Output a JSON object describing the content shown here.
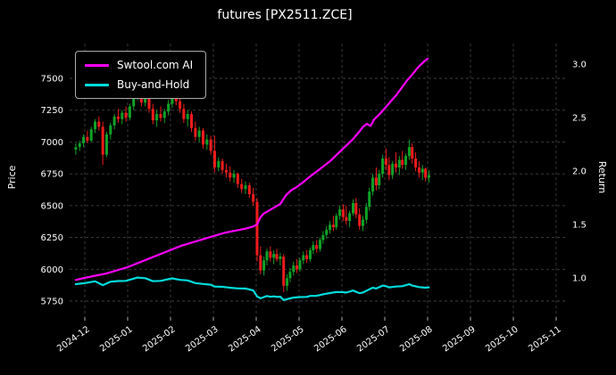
{
  "chart_data": {
    "type": "candlestick+line",
    "title": "futures [PX2511.ZCE]",
    "ylabel_left": "Price",
    "ylabel_right": "Return",
    "x_unit": "months (0 = 2024-12)",
    "xlim": [
      -0.354,
      11.208
    ],
    "price_ylim": [
      5624,
      7773
    ],
    "return_ylim": [
      0.633,
      3.19
    ],
    "background": "#000000",
    "text_color": "#ffffff",
    "grid": {
      "on": true,
      "color": "#3f3f3f",
      "dash": "3,3"
    },
    "legend_position": "upper-left",
    "x_ticks": [
      {
        "value": 0,
        "label": "2024-12"
      },
      {
        "value": 1,
        "label": "2025-01"
      },
      {
        "value": 2,
        "label": "2025-02"
      },
      {
        "value": 3,
        "label": "2025-03"
      },
      {
        "value": 4,
        "label": "2025-04"
      },
      {
        "value": 5,
        "label": "2025-05"
      },
      {
        "value": 6,
        "label": "2025-06"
      },
      {
        "value": 7,
        "label": "2025-07"
      },
      {
        "value": 8,
        "label": "2025-08"
      },
      {
        "value": 9,
        "label": "2025-09"
      },
      {
        "value": 10,
        "label": "2025-10"
      },
      {
        "value": 11,
        "label": "2025-11"
      }
    ],
    "price_ticks": [
      {
        "value": 5750,
        "label": "5750"
      },
      {
        "value": 6000,
        "label": "6000"
      },
      {
        "value": 6250,
        "label": "6250"
      },
      {
        "value": 6500,
        "label": "6500"
      },
      {
        "value": 6750,
        "label": "6750"
      },
      {
        "value": 7000,
        "label": "7000"
      },
      {
        "value": 7250,
        "label": "7250"
      },
      {
        "value": 7500,
        "label": "7500"
      }
    ],
    "return_ticks": [
      {
        "value": 1.0,
        "label": "1.0"
      },
      {
        "value": 1.5,
        "label": "1.5"
      },
      {
        "value": 2.0,
        "label": "2.0"
      },
      {
        "value": 2.5,
        "label": "2.5"
      },
      {
        "value": 3.0,
        "label": "3.0"
      }
    ],
    "legend": [
      {
        "label": "Swtool.com AI",
        "color": "#ff00ff"
      },
      {
        "label": "Buy-and-Hold",
        "color": "#00dcdc"
      }
    ],
    "candles": {
      "up_color": "#0fa227",
      "down_color": "#ee1c1c",
      "ohlc": [
        [
          -0.21,
          6940,
          6990,
          6900,
          6960
        ],
        [
          -0.12,
          6960,
          7010,
          6930,
          6990
        ],
        [
          -0.03,
          6990,
          7060,
          6960,
          7040
        ],
        [
          0.06,
          7040,
          7090,
          6990,
          7010
        ],
        [
          0.15,
          7010,
          7120,
          7000,
          7100
        ],
        [
          0.24,
          7100,
          7180,
          7070,
          7160
        ],
        [
          0.33,
          7160,
          7200,
          7090,
          7120
        ],
        [
          0.42,
          7120,
          7160,
          6820,
          6900
        ],
        [
          0.51,
          6900,
          7080,
          6880,
          7060
        ],
        [
          0.6,
          7060,
          7150,
          7020,
          7130
        ],
        [
          0.69,
          7130,
          7220,
          7100,
          7200
        ],
        [
          0.78,
          7200,
          7260,
          7150,
          7180
        ],
        [
          0.87,
          7180,
          7250,
          7140,
          7230
        ],
        [
          0.96,
          7230,
          7280,
          7160,
          7190
        ],
        [
          1.05,
          7190,
          7300,
          7170,
          7280
        ],
        [
          1.14,
          7280,
          7380,
          7250,
          7350
        ],
        [
          1.23,
          7350,
          7460,
          7330,
          7420
        ],
        [
          1.32,
          7420,
          7440,
          7280,
          7310
        ],
        [
          1.41,
          7310,
          7400,
          7280,
          7380
        ],
        [
          1.5,
          7380,
          7400,
          7230,
          7260
        ],
        [
          1.59,
          7260,
          7300,
          7140,
          7170
        ],
        [
          1.68,
          7170,
          7250,
          7120,
          7220
        ],
        [
          1.77,
          7220,
          7280,
          7160,
          7190
        ],
        [
          1.86,
          7190,
          7260,
          7150,
          7240
        ],
        [
          1.95,
          7240,
          7330,
          7210,
          7300
        ],
        [
          2.04,
          7300,
          7400,
          7270,
          7360
        ],
        [
          2.13,
          7360,
          7410,
          7290,
          7320
        ],
        [
          2.22,
          7320,
          7360,
          7230,
          7260
        ],
        [
          2.31,
          7260,
          7300,
          7150,
          7180
        ],
        [
          2.4,
          7180,
          7250,
          7120,
          7220
        ],
        [
          2.49,
          7220,
          7240,
          7080,
          7110
        ],
        [
          2.58,
          7110,
          7160,
          7010,
          7040
        ],
        [
          2.67,
          7040,
          7120,
          7000,
          7090
        ],
        [
          2.76,
          7090,
          7110,
          6950,
          6980
        ],
        [
          2.85,
          6980,
          7060,
          6940,
          7020
        ],
        [
          2.94,
          7020,
          7050,
          6900,
          6930
        ],
        [
          3.03,
          6930,
          7050,
          6760,
          6800
        ],
        [
          3.12,
          6800,
          6880,
          6770,
          6850
        ],
        [
          3.21,
          6850,
          6870,
          6750,
          6780
        ],
        [
          3.3,
          6780,
          6830,
          6720,
          6760
        ],
        [
          3.39,
          6760,
          6810,
          6690,
          6720
        ],
        [
          3.48,
          6720,
          6780,
          6680,
          6750
        ],
        [
          3.57,
          6750,
          6760,
          6640,
          6670
        ],
        [
          3.66,
          6670,
          6710,
          6600,
          6630
        ],
        [
          3.75,
          6630,
          6690,
          6590,
          6660
        ],
        [
          3.84,
          6660,
          6680,
          6560,
          6590
        ],
        [
          3.93,
          6590,
          6640,
          6500,
          6530
        ],
        [
          4.02,
          6530,
          6560,
          6060,
          6110
        ],
        [
          4.1,
          6110,
          6180,
          5960,
          5990
        ],
        [
          4.18,
          5990,
          6100,
          5950,
          6070
        ],
        [
          4.25,
          6070,
          6160,
          6030,
          6140
        ],
        [
          4.33,
          6140,
          6180,
          6060,
          6090
        ],
        [
          4.41,
          6090,
          6150,
          6040,
          6120
        ],
        [
          4.48,
          6120,
          6160,
          6060,
          6080
        ],
        [
          4.56,
          6080,
          6130,
          6030,
          6100
        ],
        [
          4.64,
          6100,
          6120,
          5820,
          5870
        ],
        [
          4.72,
          5870,
          5960,
          5830,
          5930
        ],
        [
          4.79,
          5930,
          6010,
          5900,
          5980
        ],
        [
          4.87,
          5980,
          6060,
          5950,
          6030
        ],
        [
          4.95,
          6030,
          6080,
          5970,
          6000
        ],
        [
          5.02,
          6000,
          6090,
          5980,
          6070
        ],
        [
          5.1,
          6070,
          6140,
          6040,
          6110
        ],
        [
          5.18,
          6110,
          6150,
          6050,
          6080
        ],
        [
          5.26,
          6080,
          6170,
          6060,
          6150
        ],
        [
          5.33,
          6150,
          6220,
          6120,
          6190
        ],
        [
          5.41,
          6190,
          6230,
          6130,
          6160
        ],
        [
          5.49,
          6160,
          6250,
          6140,
          6230
        ],
        [
          5.56,
          6230,
          6300,
          6200,
          6270
        ],
        [
          5.64,
          6270,
          6340,
          6240,
          6310
        ],
        [
          5.72,
          6310,
          6380,
          6280,
          6350
        ],
        [
          5.8,
          6350,
          6420,
          6300,
          6330
        ],
        [
          5.87,
          6330,
          6440,
          6310,
          6420
        ],
        [
          5.95,
          6420,
          6500,
          6390,
          6470
        ],
        [
          6.03,
          6470,
          6510,
          6380,
          6410
        ],
        [
          6.1,
          6410,
          6500,
          6350,
          6380
        ],
        [
          6.18,
          6380,
          6460,
          6330,
          6440
        ],
        [
          6.26,
          6440,
          6550,
          6420,
          6520
        ],
        [
          6.33,
          6520,
          6560,
          6400,
          6430
        ],
        [
          6.41,
          6430,
          6480,
          6310,
          6340
        ],
        [
          6.49,
          6340,
          6420,
          6300,
          6390
        ],
        [
          6.57,
          6390,
          6520,
          6360,
          6490
        ],
        [
          6.64,
          6490,
          6640,
          6460,
          6610
        ],
        [
          6.72,
          6610,
          6750,
          6580,
          6720
        ],
        [
          6.8,
          6720,
          6800,
          6620,
          6660
        ],
        [
          6.87,
          6660,
          6780,
          6630,
          6750
        ],
        [
          6.95,
          6750,
          6900,
          6720,
          6870
        ],
        [
          7.03,
          6870,
          6950,
          6780,
          6820
        ],
        [
          7.1,
          6820,
          6880,
          6700,
          6740
        ],
        [
          7.18,
          6740,
          6850,
          6710,
          6830
        ],
        [
          7.26,
          6830,
          6920,
          6760,
          6800
        ],
        [
          7.34,
          6800,
          6890,
          6740,
          6860
        ],
        [
          7.41,
          6860,
          6930,
          6790,
          6820
        ],
        [
          7.49,
          6820,
          6910,
          6780,
          6890
        ],
        [
          7.57,
          6890,
          7020,
          6860,
          6960
        ],
        [
          7.64,
          6960,
          6990,
          6830,
          6870
        ],
        [
          7.72,
          6870,
          6920,
          6770,
          6800
        ],
        [
          7.8,
          6800,
          6850,
          6720,
          6760
        ],
        [
          7.88,
          6760,
          6820,
          6700,
          6790
        ],
        [
          7.95,
          6790,
          6800,
          6690,
          6720
        ],
        [
          8.03,
          6720,
          6780,
          6680,
          6740
        ]
      ]
    },
    "series": [
      {
        "name": "Swtool.com AI",
        "color": "#ff00ff",
        "axis": "return",
        "points": [
          [
            -0.21,
            0.98
          ],
          [
            0,
            1.0
          ],
          [
            0.25,
            1.02
          ],
          [
            0.5,
            1.04
          ],
          [
            0.75,
            1.07
          ],
          [
            1.0,
            1.1
          ],
          [
            1.25,
            1.14
          ],
          [
            1.5,
            1.18
          ],
          [
            1.75,
            1.22
          ],
          [
            2.0,
            1.26
          ],
          [
            2.25,
            1.3
          ],
          [
            2.5,
            1.33
          ],
          [
            2.75,
            1.36
          ],
          [
            3.0,
            1.39
          ],
          [
            3.25,
            1.42
          ],
          [
            3.5,
            1.44
          ],
          [
            3.75,
            1.46
          ],
          [
            3.93,
            1.48
          ],
          [
            4.02,
            1.5
          ],
          [
            4.09,
            1.56
          ],
          [
            4.17,
            1.6
          ],
          [
            4.3,
            1.63
          ],
          [
            4.43,
            1.66
          ],
          [
            4.56,
            1.69
          ],
          [
            4.64,
            1.74
          ],
          [
            4.71,
            1.78
          ],
          [
            4.82,
            1.82
          ],
          [
            4.95,
            1.85
          ],
          [
            5.08,
            1.89
          ],
          [
            5.2,
            1.93
          ],
          [
            5.33,
            1.97
          ],
          [
            5.46,
            2.01
          ],
          [
            5.59,
            2.05
          ],
          [
            5.72,
            2.09
          ],
          [
            5.85,
            2.14
          ],
          [
            5.98,
            2.19
          ],
          [
            6.11,
            2.24
          ],
          [
            6.24,
            2.29
          ],
          [
            6.37,
            2.35
          ],
          [
            6.49,
            2.41
          ],
          [
            6.58,
            2.44
          ],
          [
            6.67,
            2.42
          ],
          [
            6.75,
            2.48
          ],
          [
            6.88,
            2.53
          ],
          [
            7.01,
            2.59
          ],
          [
            7.14,
            2.65
          ],
          [
            7.27,
            2.71
          ],
          [
            7.4,
            2.78
          ],
          [
            7.53,
            2.85
          ],
          [
            7.66,
            2.91
          ],
          [
            7.78,
            2.97
          ],
          [
            7.91,
            3.02
          ],
          [
            8.0,
            3.05
          ]
        ]
      },
      {
        "name": "Buy-and-Hold",
        "color": "#00dcdc",
        "axis": "return",
        "points": [
          [
            -0.21,
            0.941
          ],
          [
            0,
            0.951
          ],
          [
            0.24,
            0.968
          ],
          [
            0.42,
            0.932
          ],
          [
            0.6,
            0.964
          ],
          [
            0.78,
            0.97
          ],
          [
            0.96,
            0.972
          ],
          [
            1.23,
            1.003
          ],
          [
            1.41,
            0.997
          ],
          [
            1.59,
            0.969
          ],
          [
            1.77,
            0.972
          ],
          [
            2.04,
            0.995
          ],
          [
            2.22,
            0.981
          ],
          [
            2.4,
            0.976
          ],
          [
            2.58,
            0.951
          ],
          [
            2.76,
            0.943
          ],
          [
            2.94,
            0.936
          ],
          [
            3.03,
            0.919
          ],
          [
            3.21,
            0.916
          ],
          [
            3.39,
            0.908
          ],
          [
            3.57,
            0.901
          ],
          [
            3.75,
            0.9
          ],
          [
            3.93,
            0.883
          ],
          [
            4.02,
            0.826
          ],
          [
            4.1,
            0.809
          ],
          [
            4.18,
            0.82
          ],
          [
            4.25,
            0.83
          ],
          [
            4.33,
            0.823
          ],
          [
            4.41,
            0.827
          ],
          [
            4.48,
            0.822
          ],
          [
            4.56,
            0.824
          ],
          [
            4.64,
            0.793
          ],
          [
            4.72,
            0.801
          ],
          [
            4.79,
            0.808
          ],
          [
            4.87,
            0.815
          ],
          [
            5.02,
            0.82
          ],
          [
            5.18,
            0.822
          ],
          [
            5.26,
            0.831
          ],
          [
            5.41,
            0.832
          ],
          [
            5.57,
            0.847
          ],
          [
            5.72,
            0.858
          ],
          [
            5.87,
            0.868
          ],
          [
            6.03,
            0.866
          ],
          [
            6.1,
            0.862
          ],
          [
            6.26,
            0.881
          ],
          [
            6.41,
            0.857
          ],
          [
            6.49,
            0.863
          ],
          [
            6.64,
            0.893
          ],
          [
            6.72,
            0.908
          ],
          [
            6.8,
            0.9
          ],
          [
            6.95,
            0.928
          ],
          [
            7.03,
            0.922
          ],
          [
            7.1,
            0.911
          ],
          [
            7.26,
            0.919
          ],
          [
            7.41,
            0.922
          ],
          [
            7.57,
            0.941
          ],
          [
            7.64,
            0.928
          ],
          [
            7.8,
            0.914
          ],
          [
            7.95,
            0.908
          ],
          [
            8.03,
            0.911
          ]
        ]
      }
    ]
  }
}
